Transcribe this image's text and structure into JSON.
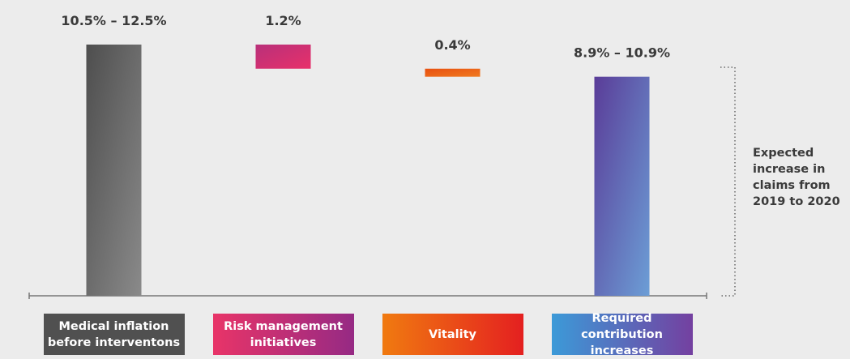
{
  "chart_data": {
    "type": "waterfall",
    "categories": [
      "Medical inflation before interventons",
      "Risk management initiatives",
      "Vitality",
      "Required contribution increases"
    ],
    "measure": [
      "absolute",
      "decrease",
      "decrease",
      "total"
    ],
    "values": [
      12.5,
      1.2,
      0.4,
      10.9
    ],
    "low_values": [
      10.5,
      null,
      null,
      8.9
    ],
    "value_labels": [
      "10.5% – 12.5%",
      "1.2%",
      "0.4%",
      "8.9% – 10.9%"
    ],
    "bar_colors": [
      [
        "#4e4e4e",
        "#8a8a8a"
      ],
      [
        "#b8307a",
        "#e8306a"
      ],
      [
        "#e85010",
        "#f07a20"
      ],
      [
        "#5a3c98",
        "#6c9ed6"
      ]
    ],
    "label_colors": [
      [
        "#505050",
        "#505050"
      ],
      [
        "#e83468",
        "#962a84"
      ],
      [
        "#f07a10",
        "#e42020"
      ],
      [
        "#3c9ad8",
        "#7440a0"
      ]
    ],
    "annotation": "Expected increase in claims from 2019 to 2020"
  }
}
